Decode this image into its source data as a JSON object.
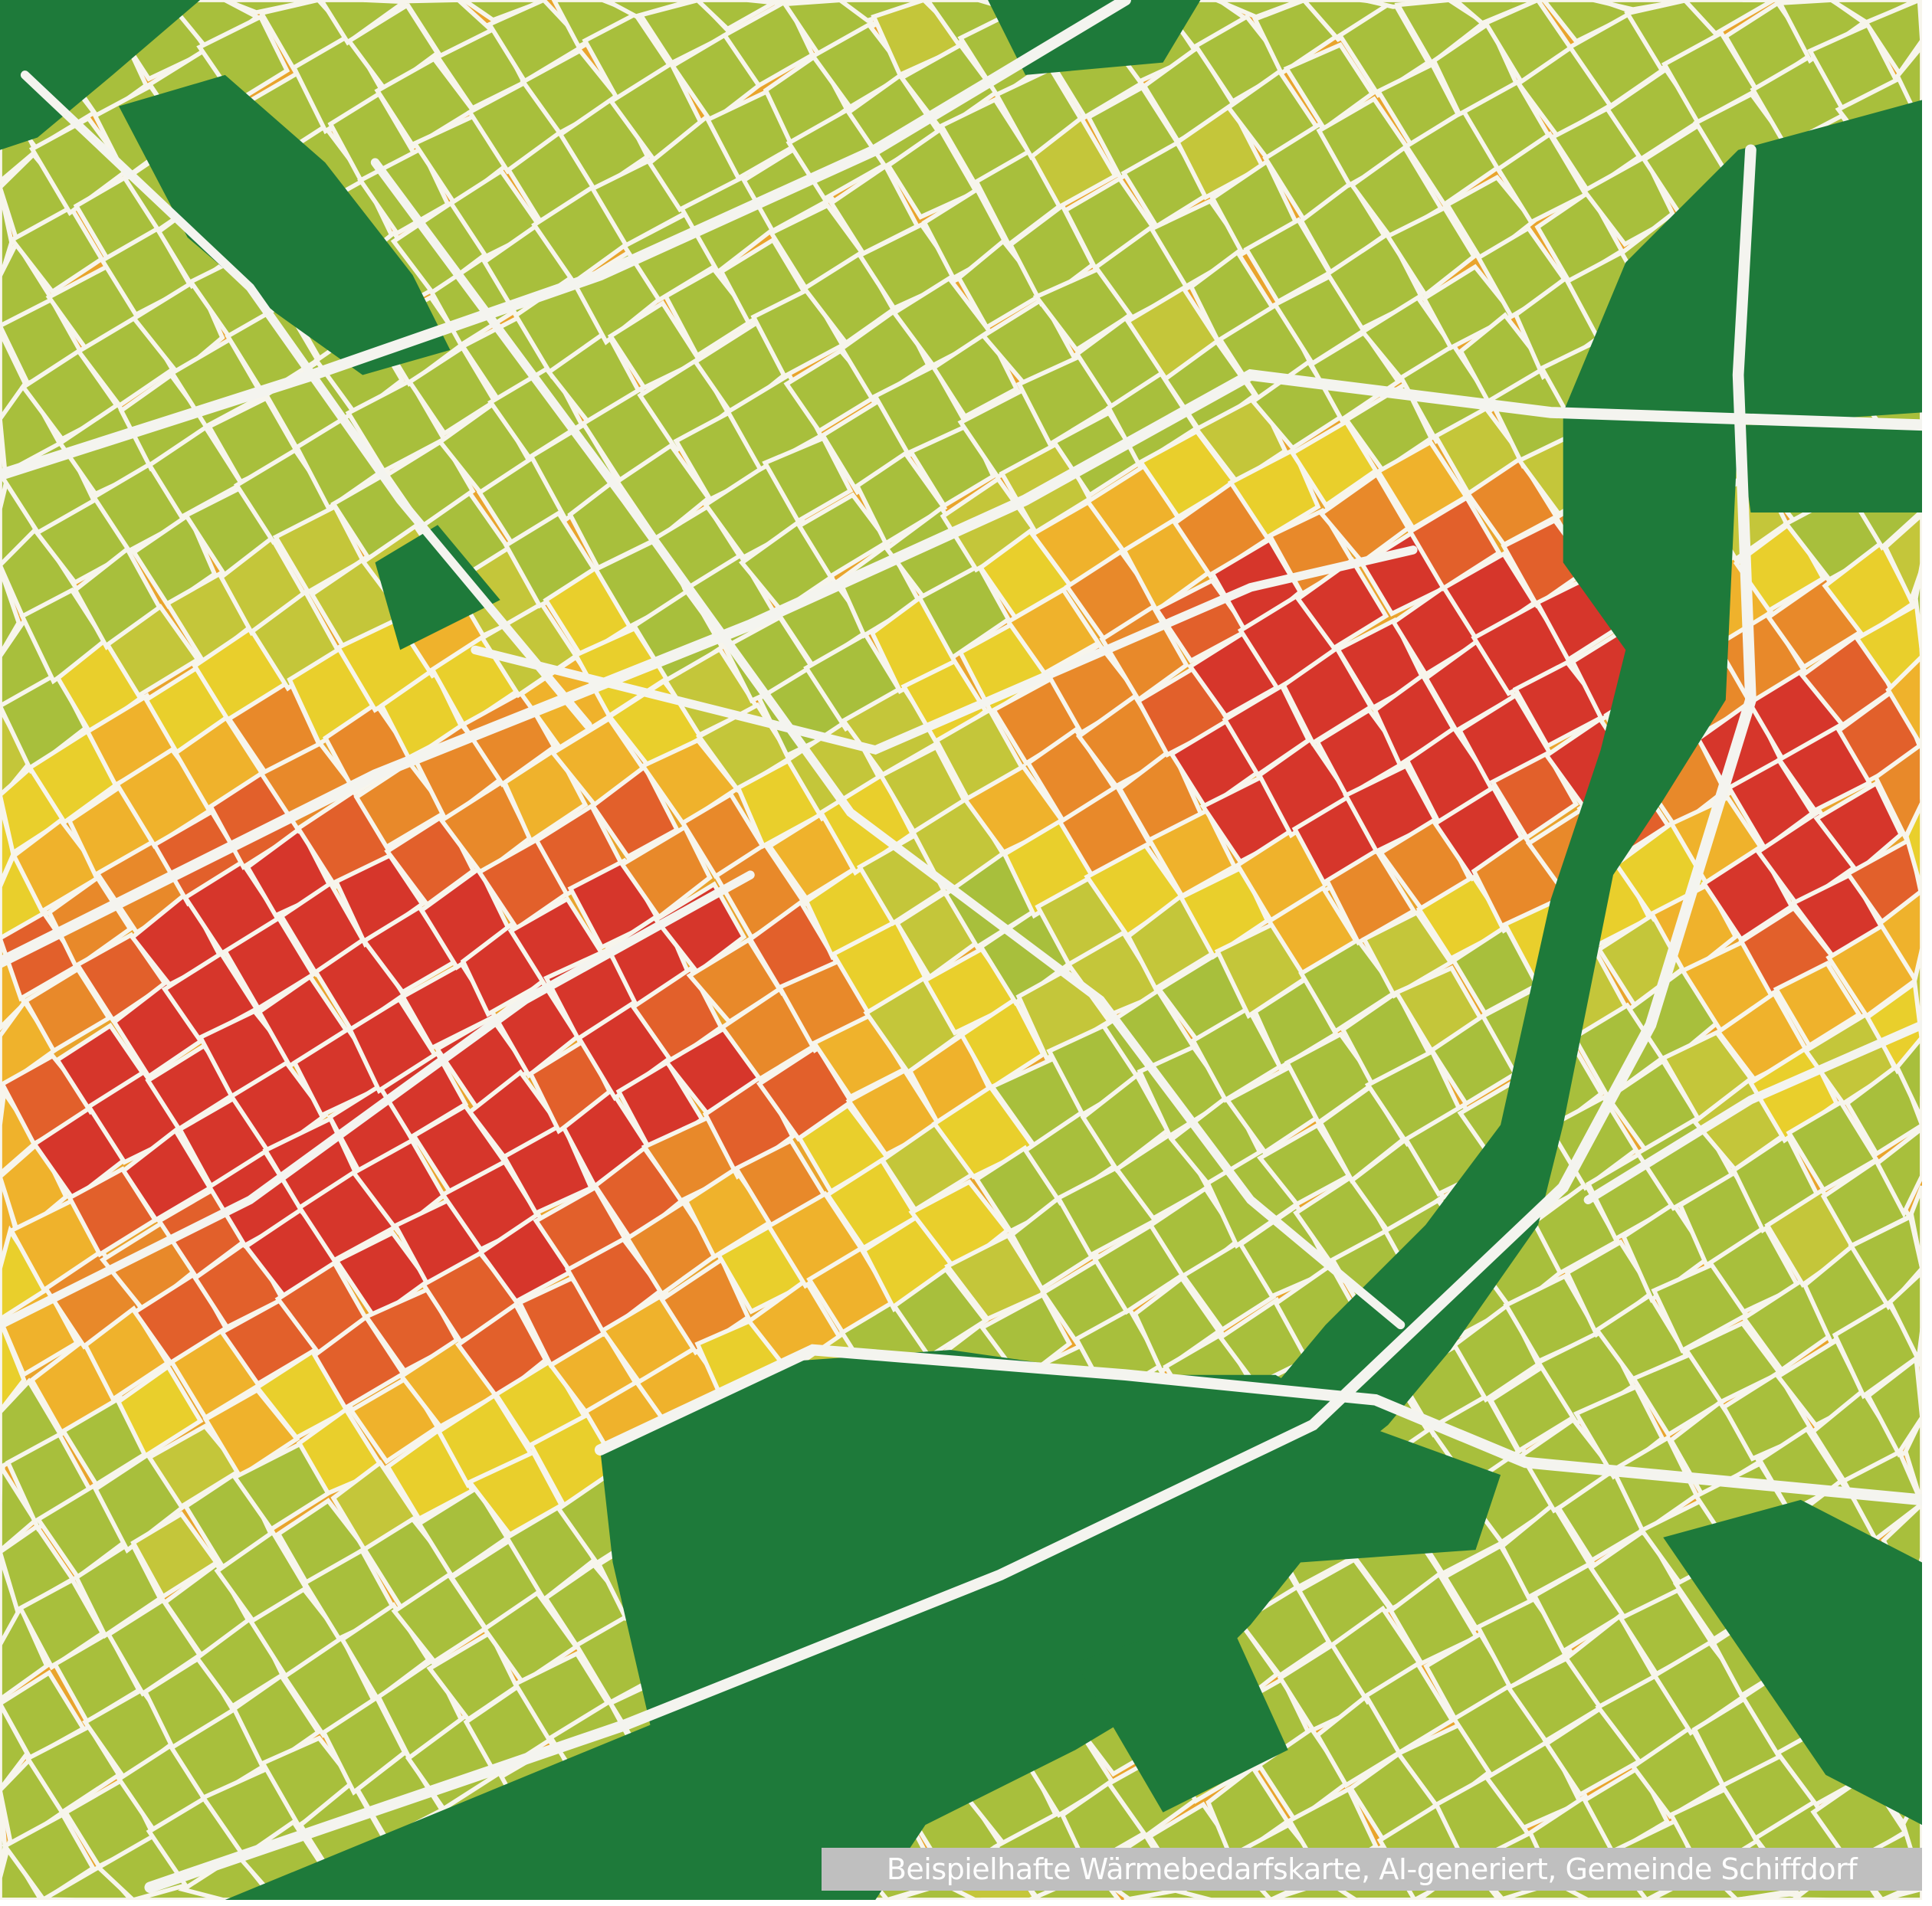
{
  "caption": "Beispielhafte Wärmebedarfskarte, AI-generiert, Gemeinde Schiffdorf",
  "colors": {
    "high_demand": "#d6362b",
    "medium_high": "#e8772a",
    "medium": "#efb22c",
    "low": "#e9cf2c",
    "very_low": "#a8bf3c",
    "green_space": "#1e7a3a",
    "roads": "#f4f4ef"
  }
}
